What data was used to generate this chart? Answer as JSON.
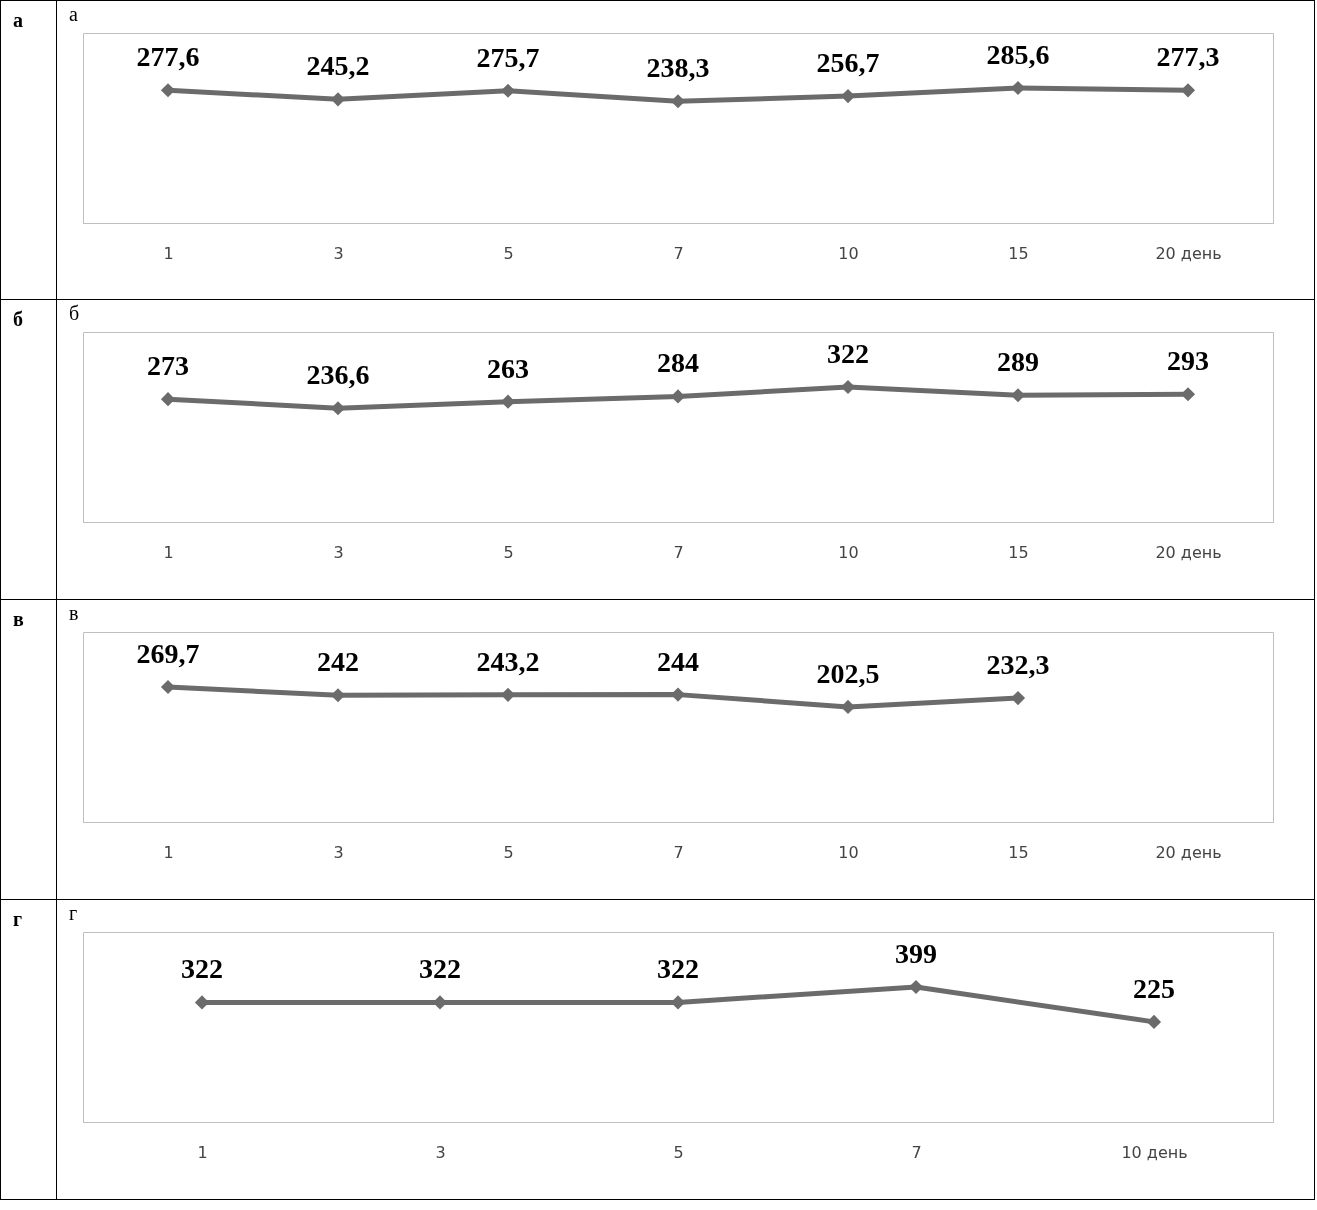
{
  "chart_data": [
    {
      "type": "line",
      "title": "а",
      "annotations": [
        "а"
      ],
      "categories": [
        "1",
        "3",
        "5",
        "7",
        "10",
        "15",
        "20 день"
      ],
      "series": [
        {
          "color": "#6b6b6b",
          "values": [
            277.6,
            245.2,
            275.7,
            238.3,
            256.7,
            285.6,
            277.3
          ],
          "value_labels": [
            "277,6",
            "245,2",
            "275,7",
            "238,3",
            "256,7",
            "285,6",
            "277,3"
          ]
        }
      ],
      "marker": "diamond",
      "line_style": "solid",
      "grid": false
    },
    {
      "type": "line",
      "title": "б",
      "annotations": [
        "б"
      ],
      "categories": [
        "1",
        "3",
        "5",
        "7",
        "10",
        "15",
        "20 день"
      ],
      "series": [
        {
          "color": "#6b6b6b",
          "values": [
            273,
            236.6,
            263,
            284,
            322,
            289,
            293
          ],
          "value_labels": [
            "273",
            "236,6",
            "263",
            "284",
            "322",
            "289",
            "293"
          ]
        }
      ],
      "marker": "diamond",
      "line_style": "solid",
      "grid": false
    },
    {
      "type": "line",
      "title": "в",
      "annotations": [
        "в"
      ],
      "categories": [
        "1",
        "3",
        "5",
        "7",
        "10",
        "15",
        "20 день"
      ],
      "series": [
        {
          "color": "#6b6b6b",
          "values": [
            269.7,
            242,
            243.2,
            244,
            202.5,
            232.3,
            null
          ],
          "value_labels": [
            "269,7",
            "242",
            "243,2",
            "244",
            "202,5",
            "232,3",
            null
          ]
        }
      ],
      "marker": "diamond",
      "line_style": "solid",
      "grid": false
    },
    {
      "type": "line",
      "title": "г",
      "annotations": [
        "г"
      ],
      "categories": [
        "1",
        "3",
        "5",
        "7",
        "10 день"
      ],
      "series": [
        {
          "color": "#6b6b6b",
          "values": [
            322,
            322,
            322,
            399,
            225
          ],
          "value_labels": [
            "322",
            "322",
            "322",
            "399",
            "225"
          ]
        }
      ],
      "marker": "diamond",
      "line_style": "solid",
      "grid": false
    }
  ]
}
